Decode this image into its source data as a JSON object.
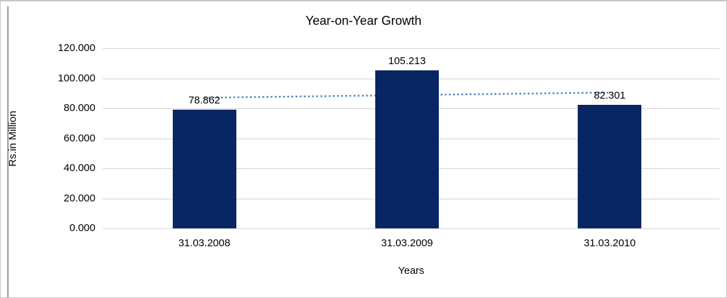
{
  "chart_data": {
    "type": "bar",
    "title": "Year-on-Year Growth",
    "categories": [
      "31.03.2008",
      "31.03.2009",
      "31.03.2010"
    ],
    "values": [
      78.862,
      105.213,
      82.301
    ],
    "value_labels": [
      "78.862",
      "105.213",
      "82.301"
    ],
    "xlabel": "Years",
    "ylabel": "Rs.in Million",
    "ylim": [
      0,
      120
    ],
    "ytick_labels": [
      "120.000",
      "100.000",
      "80.000",
      "60.000",
      "40.000",
      "20.000",
      "0.000"
    ],
    "grid": true,
    "legend": "none",
    "colors": {
      "bar": "#082664",
      "trendline": "#4f81bd",
      "gridline": "#d3d3d3",
      "text": "#000000",
      "outer_border": "#c6c6c6",
      "frame_border": "#3f3f3f"
    },
    "trendline": {
      "type": "linear",
      "style": "dotted"
    }
  }
}
